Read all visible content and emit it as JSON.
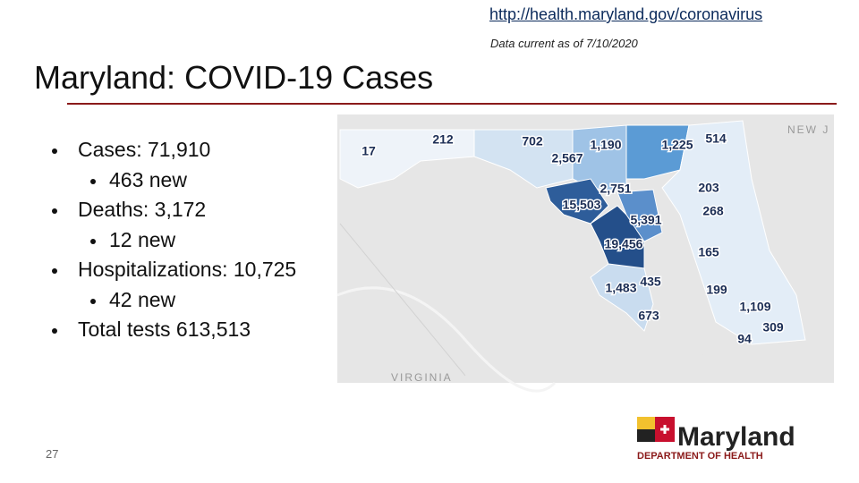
{
  "header": {
    "url": "http://health.maryland.gov/coronavirus",
    "note": "Data current as of 7/10/2020",
    "title": "Maryland: COVID-19 Cases"
  },
  "bullets": [
    {
      "text": "Cases: 71,910",
      "sub": [
        "463 new"
      ]
    },
    {
      "text": "Deaths: 3,172",
      "sub": [
        "12 new"
      ]
    },
    {
      "text": "Hospitalizations: 10,725",
      "sub": [
        "42 new"
      ]
    },
    {
      "text": "Total tests 613,513"
    }
  ],
  "map": {
    "labels": [
      "17",
      "212",
      "702",
      "2,567",
      "1,190",
      "1,225",
      "514",
      "2,751",
      "15,503",
      "203",
      "268",
      "5,391",
      "19,456",
      "165",
      "1,483",
      "435",
      "199",
      "673",
      "1,109",
      "309",
      "94"
    ],
    "places": [
      "NEW J",
      "VIRGINIA"
    ]
  },
  "logo": {
    "name": "Maryland",
    "department": "DEPARTMENT OF HEALTH"
  },
  "page_number": "27"
}
